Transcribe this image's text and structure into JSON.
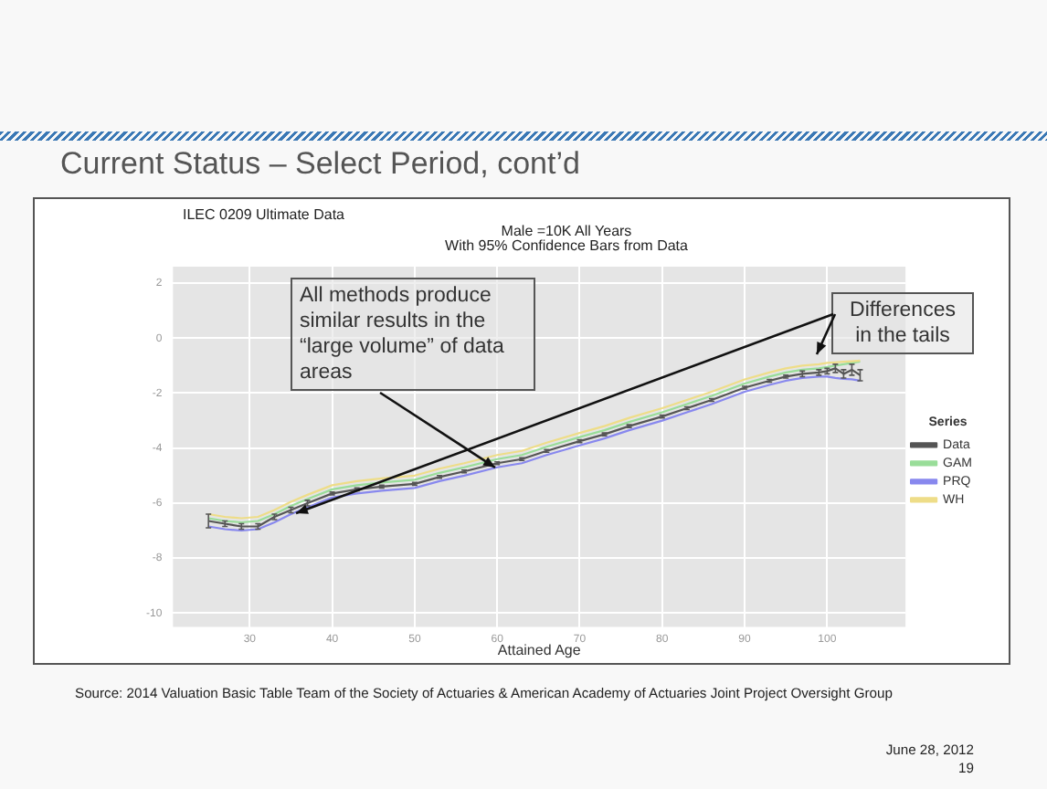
{
  "chart_data": {
    "type": "line",
    "title": "Current Status – Select Period, cont’d",
    "subtitle": "ILEC 0209 Ultimate Data",
    "xlabel": "Attained Age",
    "legend_title": "Series",
    "annotations": [
      "Male =10K All Years",
      "With 95% Confidence Bars from Data",
      "All methods produce similar results in the “large volume” of data areas",
      "Differences in the tails",
      "Source:  2014 Valuation Basic Table Team of the Society of Actuaries & American Academy of Actuaries Joint Project Oversight  Group",
      "June 28, 2012",
      "19"
    ],
    "x": [
      25,
      27,
      29,
      31,
      33,
      35,
      37,
      40,
      43,
      46,
      50,
      53,
      56,
      60,
      63,
      66,
      70,
      73,
      76,
      80,
      83,
      86,
      90,
      93,
      95,
      97,
      99,
      100,
      101,
      102,
      103,
      104
    ],
    "series": [
      {
        "name": "Data",
        "color": "#555555",
        "values": [
          -6.65,
          -6.75,
          -6.85,
          -6.85,
          -6.5,
          -6.25,
          -6.0,
          -5.65,
          -5.5,
          -5.4,
          -5.3,
          -5.05,
          -4.85,
          -4.55,
          -4.4,
          -4.1,
          -3.75,
          -3.5,
          -3.2,
          -2.85,
          -2.55,
          -2.25,
          -1.8,
          -1.55,
          -1.4,
          -1.3,
          -1.25,
          -1.2,
          -1.1,
          -1.3,
          -1.15,
          -1.35
        ],
        "errors": [
          0.25,
          0.1,
          0.1,
          0.1,
          0.1,
          0.1,
          0.1,
          0.05,
          0.05,
          0.05,
          0.05,
          0.05,
          0.05,
          0.05,
          0.05,
          0.05,
          0.05,
          0.05,
          0.05,
          0.05,
          0.05,
          0.05,
          0.05,
          0.05,
          0.05,
          0.1,
          0.1,
          0.1,
          0.15,
          0.15,
          0.2,
          0.2
        ]
      },
      {
        "name": "GAM",
        "color": "#99dd99",
        "values": [
          -6.55,
          -6.65,
          -6.7,
          -6.65,
          -6.4,
          -6.1,
          -5.85,
          -5.5,
          -5.35,
          -5.25,
          -5.15,
          -4.9,
          -4.7,
          -4.4,
          -4.25,
          -3.95,
          -3.6,
          -3.35,
          -3.05,
          -2.7,
          -2.4,
          -2.1,
          -1.65,
          -1.4,
          -1.25,
          -1.15,
          -1.1,
          -1.05,
          -1.0,
          -0.95,
          -0.9,
          -0.85
        ]
      },
      {
        "name": "PRQ",
        "color": "#8888ee",
        "values": [
          -6.85,
          -6.95,
          -7.0,
          -6.95,
          -6.7,
          -6.4,
          -6.15,
          -5.8,
          -5.65,
          -5.55,
          -5.45,
          -5.2,
          -5.0,
          -4.7,
          -4.55,
          -4.25,
          -3.9,
          -3.65,
          -3.35,
          -3.0,
          -2.7,
          -2.4,
          -1.95,
          -1.7,
          -1.55,
          -1.45,
          -1.4,
          -1.4,
          -1.45,
          -1.48,
          -1.5,
          -1.55
        ]
      },
      {
        "name": "WH",
        "color": "#eedd88",
        "values": [
          -6.4,
          -6.5,
          -6.55,
          -6.5,
          -6.25,
          -5.95,
          -5.7,
          -5.35,
          -5.2,
          -5.1,
          -5.0,
          -4.75,
          -4.55,
          -4.25,
          -4.1,
          -3.8,
          -3.45,
          -3.2,
          -2.9,
          -2.55,
          -2.25,
          -1.95,
          -1.5,
          -1.25,
          -1.1,
          -1.0,
          -0.95,
          -0.9,
          -0.88,
          -0.86,
          -0.84,
          -0.82
        ]
      }
    ],
    "xlim": [
      20.7,
      109.5
    ],
    "xticks": [
      30,
      40,
      50,
      60,
      70,
      80,
      90,
      100
    ],
    "ylim": [
      -10.5,
      2.6
    ],
    "yticks": [
      -10,
      -8,
      -6,
      -4,
      -2,
      0,
      2
    ],
    "grid": true,
    "legend": "right"
  }
}
